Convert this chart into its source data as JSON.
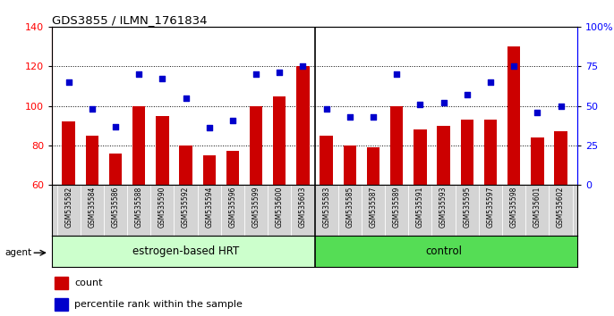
{
  "title": "GDS3855 / ILMN_1761834",
  "categories": [
    "GSM535582",
    "GSM535584",
    "GSM535586",
    "GSM535588",
    "GSM535590",
    "GSM535592",
    "GSM535594",
    "GSM535596",
    "GSM535599",
    "GSM535600",
    "GSM535603",
    "GSM535583",
    "GSM535585",
    "GSM535587",
    "GSM535589",
    "GSM535591",
    "GSM535593",
    "GSM535595",
    "GSM535597",
    "GSM535598",
    "GSM535601",
    "GSM535602"
  ],
  "bar_values": [
    92,
    85,
    76,
    100,
    95,
    80,
    75,
    77,
    100,
    105,
    120,
    85,
    80,
    79,
    100,
    88,
    90,
    93,
    93,
    130,
    84,
    87
  ],
  "blue_values": [
    65,
    48,
    37,
    70,
    67,
    55,
    36,
    41,
    70,
    71,
    75,
    48,
    43,
    43,
    70,
    51,
    52,
    57,
    65,
    75,
    46,
    50
  ],
  "group1_count": 11,
  "group2_count": 11,
  "group1_label": "estrogen-based HRT",
  "group2_label": "control",
  "agent_label": "agent",
  "ylim_left": [
    60,
    140
  ],
  "ylim_right": [
    0,
    100
  ],
  "yticks_left": [
    60,
    80,
    100,
    120,
    140
  ],
  "yticks_right": [
    0,
    25,
    50,
    75,
    100
  ],
  "bar_color": "#cc0000",
  "dot_color": "#0000cc",
  "group_bg1": "#ccffcc",
  "group_bg2": "#55dd55",
  "legend_count_label": "count",
  "legend_pct_label": "percentile rank within the sample"
}
